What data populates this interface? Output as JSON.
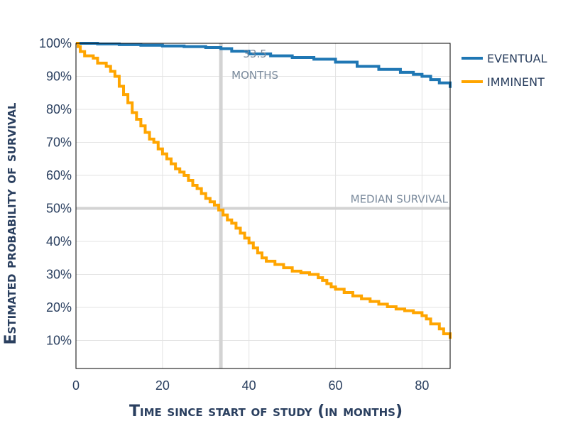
{
  "chart_data": {
    "type": "line",
    "xlabel": "Time since start of study (in months)",
    "ylabel": "Estimated probability of survival",
    "xlim": [
      0,
      86.5
    ],
    "ylim": [
      0.015,
      1.0
    ],
    "x_ticks": [
      0,
      20,
      40,
      60,
      80
    ],
    "x_tick_labels": [
      "0",
      "20",
      "40",
      "60",
      "80"
    ],
    "y_ticks": [
      0.1,
      0.2,
      0.3,
      0.4,
      0.5,
      0.6,
      0.7,
      0.8,
      0.9,
      1.0
    ],
    "y_tick_labels": [
      "10%",
      "20%",
      "30%",
      "40%",
      "50%",
      "60%",
      "70%",
      "80%",
      "90%",
      "100%"
    ],
    "grid": true,
    "legend_position": "right",
    "series": [
      {
        "name": "EVENTUAL",
        "color": "#1f77b4",
        "step": true,
        "x": [
          0,
          5,
          10,
          15,
          20,
          25,
          30,
          33.5,
          36,
          40,
          45,
          50,
          55,
          60,
          65,
          70,
          75,
          78,
          80,
          82,
          84,
          86.5
        ],
        "y": [
          1.0,
          0.998,
          0.996,
          0.994,
          0.992,
          0.99,
          0.987,
          0.984,
          0.976,
          0.968,
          0.962,
          0.957,
          0.952,
          0.943,
          0.93,
          0.921,
          0.912,
          0.906,
          0.9,
          0.89,
          0.88,
          0.865
        ]
      },
      {
        "name": "IMMINENT",
        "color": "#ffa500",
        "step": true,
        "x": [
          0,
          0.5,
          1,
          2,
          4,
          5,
          7,
          8,
          9,
          10,
          11,
          12,
          13,
          14,
          15,
          16,
          17,
          18,
          19,
          20,
          21,
          22,
          23,
          24,
          25,
          26,
          27,
          28,
          29,
          30,
          31,
          32,
          33,
          34,
          35,
          36,
          37,
          38,
          39,
          40,
          41,
          42,
          43,
          44,
          46,
          48,
          50,
          52,
          54,
          56,
          57,
          58,
          59,
          60,
          62,
          64,
          66,
          68,
          70,
          72,
          74,
          76,
          78,
          80,
          81,
          82,
          84,
          85,
          86.5
        ],
        "y": [
          1.0,
          0.99,
          0.975,
          0.962,
          0.955,
          0.94,
          0.93,
          0.915,
          0.9,
          0.87,
          0.845,
          0.82,
          0.79,
          0.77,
          0.75,
          0.73,
          0.71,
          0.7,
          0.68,
          0.665,
          0.65,
          0.635,
          0.62,
          0.61,
          0.6,
          0.585,
          0.57,
          0.56,
          0.545,
          0.53,
          0.52,
          0.51,
          0.495,
          0.48,
          0.465,
          0.455,
          0.44,
          0.425,
          0.41,
          0.395,
          0.38,
          0.365,
          0.35,
          0.34,
          0.33,
          0.32,
          0.31,
          0.305,
          0.3,
          0.29,
          0.282,
          0.272,
          0.262,
          0.255,
          0.245,
          0.235,
          0.226,
          0.218,
          0.21,
          0.202,
          0.195,
          0.19,
          0.184,
          0.175,
          0.165,
          0.15,
          0.135,
          0.12,
          0.105
        ]
      }
    ],
    "reference_lines": [
      {
        "axis": "y",
        "value": 0.5,
        "label": "MEDIAN SURVIVAL"
      },
      {
        "axis": "x",
        "value": 33.5,
        "label_value": "33.5",
        "label_unit": "MONTHS"
      }
    ]
  }
}
